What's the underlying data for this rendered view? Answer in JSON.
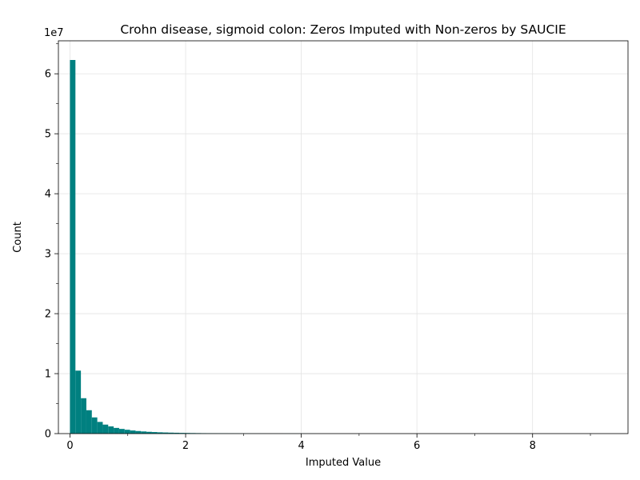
{
  "chart_data": {
    "type": "bar",
    "title": "Crohn disease, sigmoid colon: Zeros Imputed with Non-zeros by SAUCIE",
    "xlabel": "Imputed Value",
    "ylabel": "Count",
    "y_offset_label": "1e7",
    "xlim": [
      -0.2,
      9.65
    ],
    "ylim": [
      0,
      65500000.0
    ],
    "x_ticks": [
      0,
      2,
      4,
      6,
      8
    ],
    "x_minor_ticks": [
      1,
      3,
      5,
      7,
      9
    ],
    "y_ticks": [
      0,
      10000000.0,
      20000000.0,
      30000000.0,
      40000000.0,
      50000000.0,
      60000000.0
    ],
    "y_tick_labels": [
      "0",
      "1",
      "2",
      "3",
      "4",
      "5",
      "6"
    ],
    "grid": true,
    "bar_color": "#008080",
    "bin_width": 0.0945,
    "bins_start": 0.0,
    "counts": [
      62300000,
      10500000,
      5900000,
      3900000,
      2700000,
      1950000,
      1500000,
      1200000,
      950000,
      780000,
      640000,
      520000,
      430000,
      360000,
      300000,
      255000,
      215000,
      185000,
      160000,
      140000,
      120000,
      105000,
      92000,
      80000,
      70000,
      62000,
      55000,
      48000,
      42000,
      37000,
      32000,
      28000,
      25000,
      22000,
      19000,
      17000,
      15000,
      13000,
      11500,
      10000,
      9000,
      8000,
      7000,
      6200,
      5500,
      4800,
      4200,
      3700,
      3300,
      2900,
      2500,
      2200,
      1900,
      1700,
      1500,
      1300,
      1150,
      1000,
      900,
      800,
      700,
      620,
      550,
      480,
      420,
      370,
      330,
      290,
      250,
      220,
      190,
      170,
      150,
      130,
      115,
      100,
      90,
      80,
      70,
      62,
      55,
      48,
      42,
      37,
      33,
      29,
      25,
      22,
      19,
      17,
      15,
      13,
      11,
      10,
      9,
      8,
      7,
      6,
      5,
      4
    ]
  }
}
